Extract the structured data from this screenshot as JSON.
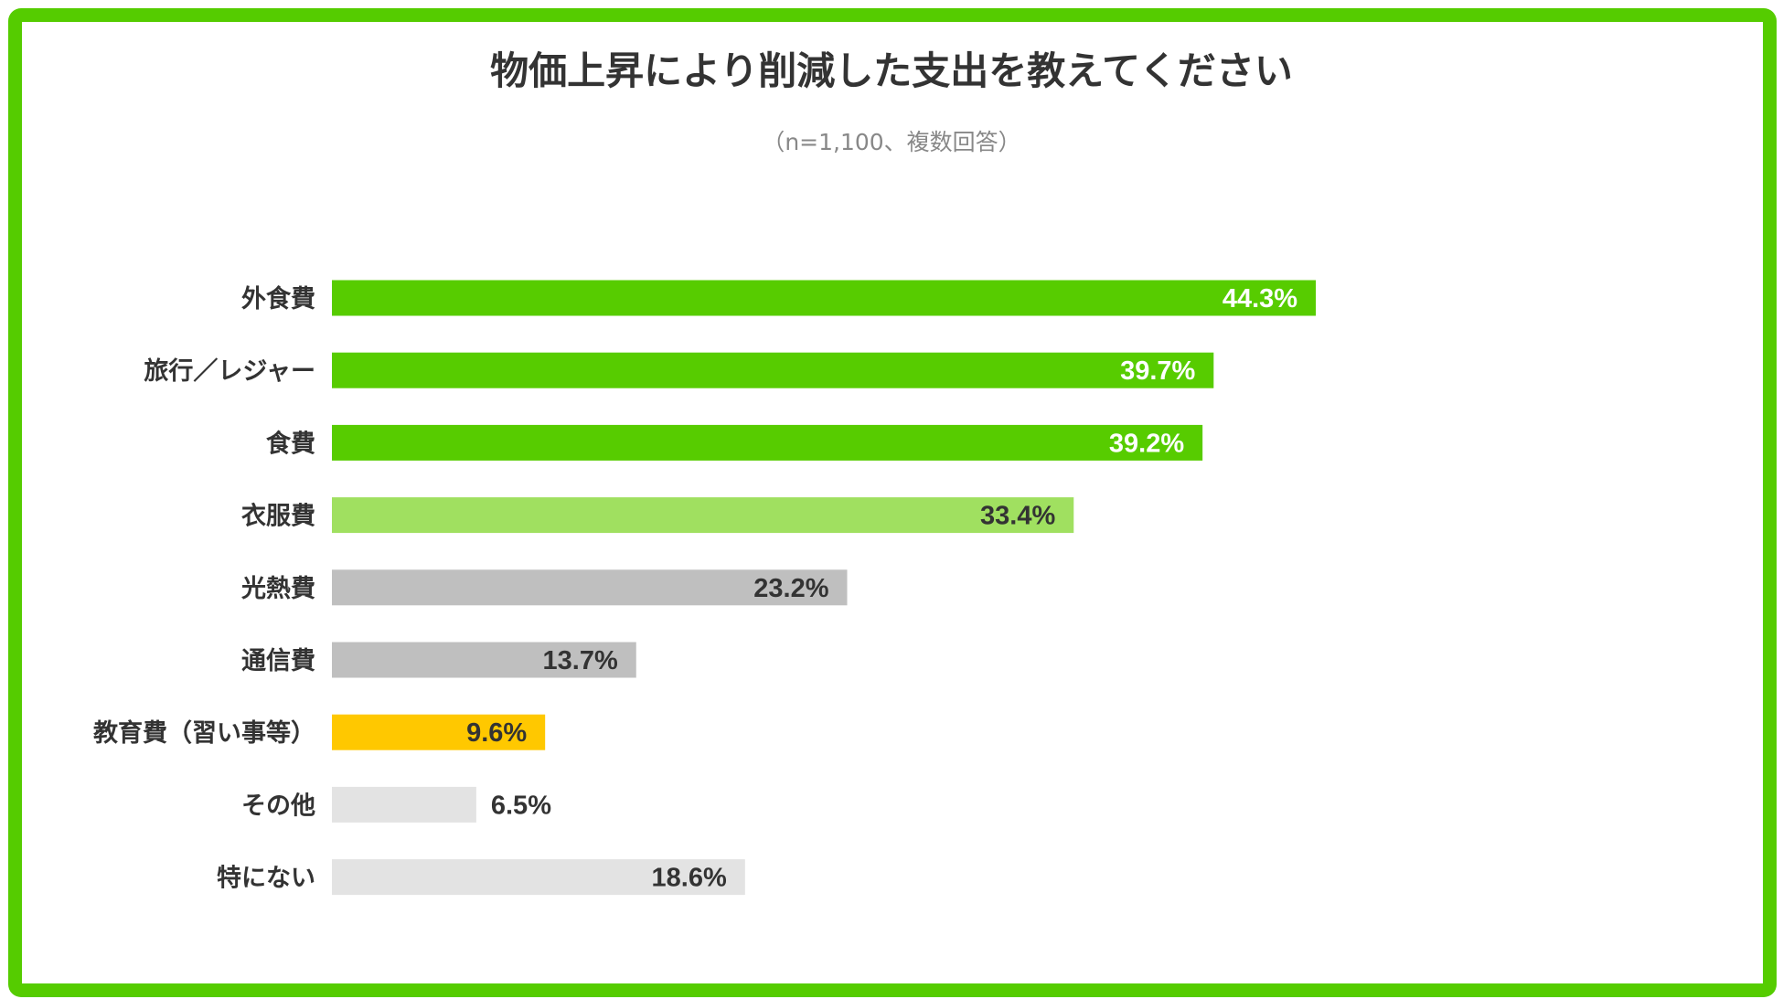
{
  "chart_data": {
    "type": "bar",
    "orientation": "horizontal",
    "title": "物価上昇により削減した支出を教えてください",
    "subtitle": "（n=1,100、複数回答）",
    "categories": [
      "外食費",
      "旅行／レジャー",
      "食費",
      "衣服費",
      "光熱費",
      "通信費",
      "教育費（習い事等）",
      "その他",
      "特にない"
    ],
    "values": [
      44.3,
      39.7,
      39.2,
      33.4,
      23.2,
      13.7,
      9.6,
      6.5,
      18.6
    ],
    "value_labels": [
      "44.3%",
      "39.7%",
      "39.2%",
      "33.4%",
      "23.2%",
      "13.7%",
      "9.6%",
      "6.5%",
      "18.6%"
    ],
    "bar_colors": [
      "#57cc00",
      "#57cc00",
      "#57cc00",
      "#a0e060",
      "#bfbfbf",
      "#bfbfbf",
      "#ffc800",
      "#e3e3e3",
      "#e3e3e3"
    ],
    "label_colors": [
      "#ffffff",
      "#ffffff",
      "#ffffff",
      "#333333",
      "#333333",
      "#333333",
      "#333333",
      "#333333",
      "#333333"
    ],
    "grid": false,
    "axes_visible": false,
    "frame_color": "#55cc00"
  }
}
